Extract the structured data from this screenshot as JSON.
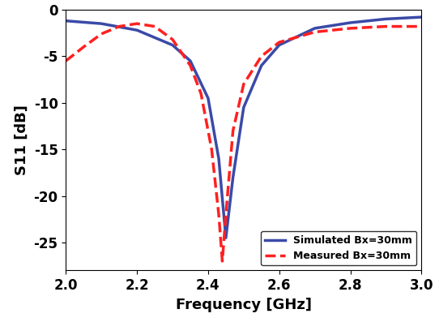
{
  "chart_data": {
    "type": "line",
    "x_label": "Frequency [GHz]",
    "y_label": "S11 [dB]",
    "xlim": [
      2.0,
      3.0
    ],
    "xticks": [
      2.0,
      2.2,
      2.4,
      2.6,
      2.8,
      3.0
    ],
    "ylim": [
      -28,
      0
    ],
    "yticks": [
      0,
      -5,
      -10,
      -15,
      -20,
      -25
    ],
    "legend": "lower right",
    "grid": false,
    "series": [
      {
        "name": "Simulated Bx=30mm",
        "color": "#3a4aa8",
        "line_style": "solid",
        "x": [
          2.0,
          2.1,
          2.2,
          2.3,
          2.35,
          2.4,
          2.43,
          2.45,
          2.47,
          2.5,
          2.55,
          2.6,
          2.7,
          2.8,
          2.9,
          3.0
        ],
        "values": [
          -1.2,
          -1.5,
          -2.2,
          -3.8,
          -5.5,
          -9.5,
          -16,
          -24.5,
          -18,
          -10.5,
          -6,
          -3.8,
          -2.0,
          -1.4,
          -1.0,
          -0.8
        ]
      },
      {
        "name": "Measured Bx=30mm",
        "color": "#ff2020",
        "line_style": "dashed",
        "x": [
          2.0,
          2.05,
          2.1,
          2.15,
          2.2,
          2.25,
          2.3,
          2.35,
          2.38,
          2.41,
          2.43,
          2.44,
          2.45,
          2.47,
          2.5,
          2.55,
          2.6,
          2.7,
          2.8,
          2.9,
          3.0
        ],
        "values": [
          -5.5,
          -4,
          -2.6,
          -1.8,
          -1.5,
          -1.8,
          -3.2,
          -6,
          -9,
          -15,
          -22,
          -27,
          -22,
          -13,
          -8,
          -5,
          -3.5,
          -2.4,
          -2.0,
          -1.8,
          -1.8
        ]
      }
    ]
  }
}
